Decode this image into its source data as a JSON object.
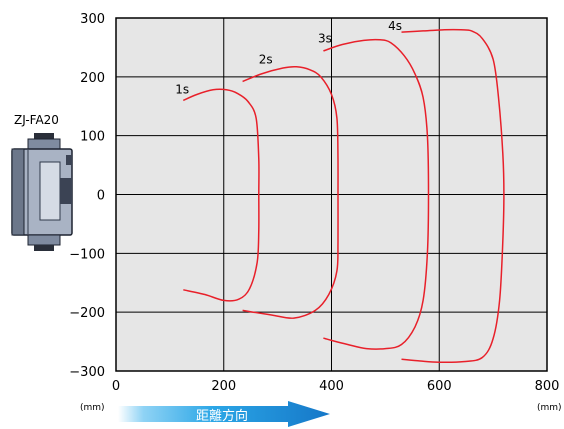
{
  "device_label": "ZJ-FA20",
  "direction_label": "距離方向",
  "x_unit": "(mm)",
  "x_unit_right": "(mm)",
  "chart_data": {
    "type": "line",
    "title": "",
    "xlabel": "",
    "ylabel": "",
    "xlim": [
      0,
      800
    ],
    "ylim": [
      -300,
      300
    ],
    "grid": true,
    "x_ticks": [
      "0",
      "200",
      "400",
      "600",
      "800"
    ],
    "y_ticks": [
      "300",
      "200",
      "100",
      "0",
      "−100",
      "−200",
      "−300"
    ],
    "color": "#e8202a",
    "series": [
      {
        "name": "1s",
        "points": [
          [
            125,
            160
          ],
          [
            150,
            170
          ],
          [
            180,
            178
          ],
          [
            205,
            178
          ],
          [
            225,
            172
          ],
          [
            245,
            158
          ],
          [
            260,
            130
          ],
          [
            265,
            60
          ],
          [
            265,
            0
          ],
          [
            265,
            -60
          ],
          [
            262,
            -115
          ],
          [
            248,
            -160
          ],
          [
            228,
            -178
          ],
          [
            200,
            -180
          ],
          [
            165,
            -170
          ],
          [
            125,
            -162
          ]
        ]
      },
      {
        "name": "2s",
        "points": [
          [
            235,
            192
          ],
          [
            270,
            205
          ],
          [
            310,
            215
          ],
          [
            335,
            217
          ],
          [
            360,
            212
          ],
          [
            380,
            200
          ],
          [
            400,
            170
          ],
          [
            410,
            130
          ],
          [
            412,
            60
          ],
          [
            412,
            0
          ],
          [
            412,
            -80
          ],
          [
            410,
            -130
          ],
          [
            395,
            -170
          ],
          [
            370,
            -197
          ],
          [
            330,
            -210
          ],
          [
            290,
            -205
          ],
          [
            255,
            -200
          ],
          [
            235,
            -197
          ]
        ]
      },
      {
        "name": "3s",
        "points": [
          [
            385,
            244
          ],
          [
            420,
            255
          ],
          [
            460,
            262
          ],
          [
            490,
            263
          ],
          [
            510,
            258
          ],
          [
            535,
            236
          ],
          [
            555,
            205
          ],
          [
            570,
            165
          ],
          [
            578,
            100
          ],
          [
            580,
            0
          ],
          [
            578,
            -100
          ],
          [
            570,
            -180
          ],
          [
            555,
            -225
          ],
          [
            530,
            -255
          ],
          [
            500,
            -262
          ],
          [
            465,
            -262
          ],
          [
            430,
            -255
          ],
          [
            400,
            -248
          ],
          [
            385,
            -244
          ]
        ]
      },
      {
        "name": "4s",
        "points": [
          [
            530,
            276
          ],
          [
            570,
            278
          ],
          [
            610,
            280
          ],
          [
            640,
            280
          ],
          [
            660,
            278
          ],
          [
            680,
            265
          ],
          [
            700,
            230
          ],
          [
            710,
            165
          ],
          [
            718,
            70
          ],
          [
            720,
            0
          ],
          [
            718,
            -80
          ],
          [
            712,
            -180
          ],
          [
            700,
            -245
          ],
          [
            680,
            -277
          ],
          [
            645,
            -284
          ],
          [
            600,
            -285
          ],
          [
            565,
            -283
          ],
          [
            530,
            -280
          ]
        ]
      }
    ],
    "labels": [
      {
        "text": "1s",
        "x": 110,
        "y": 172
      },
      {
        "text": "2s",
        "x": 265,
        "y": 223
      },
      {
        "text": "3s",
        "x": 375,
        "y": 258
      },
      {
        "text": "4s",
        "x": 505,
        "y": 280
      }
    ]
  }
}
